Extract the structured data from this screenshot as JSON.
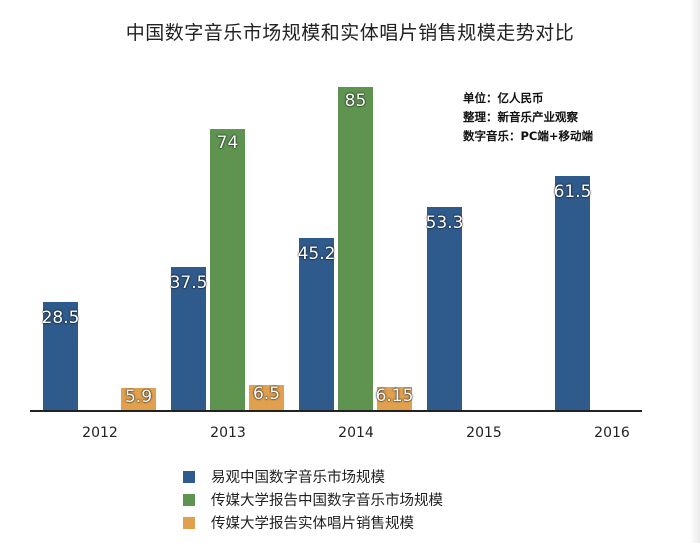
{
  "title": "中国数字音乐市场规模和实体唱片销售规模走势对比",
  "notes": [
    "单位：亿人民币",
    "整理：新音乐产业观察",
    "数字音乐：PC端+移动端"
  ],
  "colors": {
    "blue": "#2f5a8c",
    "green": "#5e9450",
    "orange": "#e0a04e"
  },
  "chart_data": {
    "type": "bar",
    "title": "中国数字音乐市场规模和实体唱片销售规模走势对比",
    "xlabel": "",
    "ylabel": "亿人民币",
    "categories": [
      "2012",
      "2013",
      "2014",
      "2015",
      "2016"
    ],
    "series": [
      {
        "name": "易观中国数字音乐市场规模",
        "values": [
          28.5,
          37.5,
          45.2,
          53.3,
          61.5
        ]
      },
      {
        "name": "传媒大学报告中国数字音乐市场规模",
        "values": [
          null,
          74,
          85,
          null,
          null
        ]
      },
      {
        "name": "传媒大学报告实体唱片销售规模",
        "values": [
          5.9,
          6.5,
          6.15,
          null,
          null
        ]
      }
    ],
    "labels": {
      "blue": [
        "28.5",
        "37.5",
        "45.2",
        "53.3",
        "61.5"
      ],
      "green": [
        "",
        "74",
        "85",
        "",
        ""
      ],
      "orange": [
        "5.9",
        "6.5",
        "6.15",
        "",
        ""
      ]
    },
    "grid": false,
    "legend_position": "bottom"
  },
  "legend": [
    {
      "label": "易观中国数字音乐市场规模",
      "color": "#2f5a8c"
    },
    {
      "label": "传媒大学报告中国数字音乐市场规模",
      "color": "#5e9450"
    },
    {
      "label": "传媒大学报告实体唱片销售规模",
      "color": "#e0a04e"
    }
  ]
}
